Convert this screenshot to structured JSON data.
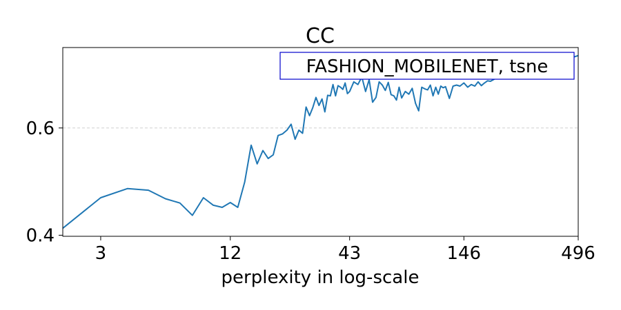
{
  "chart_data": {
    "type": "line",
    "title": "CC",
    "xlabel": "perplexity in log-scale",
    "ylabel": "",
    "x_scale": "log",
    "xlim": [
      2,
      496
    ],
    "ylim": [
      0.398,
      0.75
    ],
    "x_ticks": [
      3,
      12,
      43,
      146,
      496
    ],
    "x_tick_labels": [
      "3",
      "12",
      "43",
      "146",
      "496"
    ],
    "y_ticks": [
      0.4,
      0.6
    ],
    "y_tick_labels": [
      "0.4",
      "0.6"
    ],
    "grid": "horizontal dashed at 0.6",
    "legend_placement": "top-right",
    "colors": {
      "series": "#1f77b4",
      "legend_border": "#0000cc"
    },
    "series": [
      {
        "name": "FASHION_MOBILENET, tsne",
        "x": [
          2,
          3,
          4,
          5,
          6,
          7,
          8,
          9,
          10,
          11,
          12,
          13,
          14,
          15,
          16,
          17,
          18,
          19,
          20,
          21,
          22,
          23,
          24,
          25,
          26,
          27,
          28,
          29,
          30,
          31,
          32,
          33,
          34,
          35,
          36,
          37,
          38,
          39,
          40,
          41,
          42,
          43,
          45,
          47,
          49,
          51,
          53,
          55,
          57,
          59,
          61,
          63,
          65,
          67,
          69,
          71,
          73,
          75,
          78,
          81,
          84,
          87,
          90,
          93,
          96,
          99,
          102,
          105,
          108,
          111,
          114,
          117,
          120,
          125,
          130,
          135,
          140,
          146,
          152,
          158,
          164,
          170,
          176,
          182,
          188,
          194,
          200,
          210,
          220,
          230,
          240,
          250,
          262,
          274,
          286,
          298,
          310,
          330,
          350,
          370,
          390,
          410,
          430,
          450,
          470,
          496
        ],
        "y": [
          0.413,
          0.47,
          0.487,
          0.484,
          0.468,
          0.46,
          0.437,
          0.47,
          0.456,
          0.452,
          0.461,
          0.452,
          0.499,
          0.568,
          0.533,
          0.558,
          0.543,
          0.55,
          0.586,
          0.589,
          0.596,
          0.607,
          0.579,
          0.596,
          0.59,
          0.639,
          0.623,
          0.638,
          0.657,
          0.642,
          0.654,
          0.63,
          0.661,
          0.66,
          0.681,
          0.66,
          0.679,
          0.676,
          0.672,
          0.684,
          0.664,
          0.668,
          0.686,
          0.681,
          0.695,
          0.668,
          0.69,
          0.648,
          0.657,
          0.686,
          0.68,
          0.67,
          0.685,
          0.662,
          0.66,
          0.652,
          0.676,
          0.656,
          0.668,
          0.663,
          0.674,
          0.646,
          0.632,
          0.676,
          0.673,
          0.671,
          0.68,
          0.66,
          0.676,
          0.663,
          0.678,
          0.675,
          0.677,
          0.655,
          0.678,
          0.68,
          0.678,
          0.684,
          0.676,
          0.681,
          0.678,
          0.686,
          0.679,
          0.684,
          0.688,
          0.687,
          0.69,
          0.695,
          0.692,
          0.695,
          0.696,
          0.693,
          0.7,
          0.698,
          0.704,
          0.706,
          0.709,
          0.712,
          0.716,
          0.719,
          0.724,
          0.726,
          0.729,
          0.731,
          0.732,
          0.735
        ]
      }
    ]
  }
}
